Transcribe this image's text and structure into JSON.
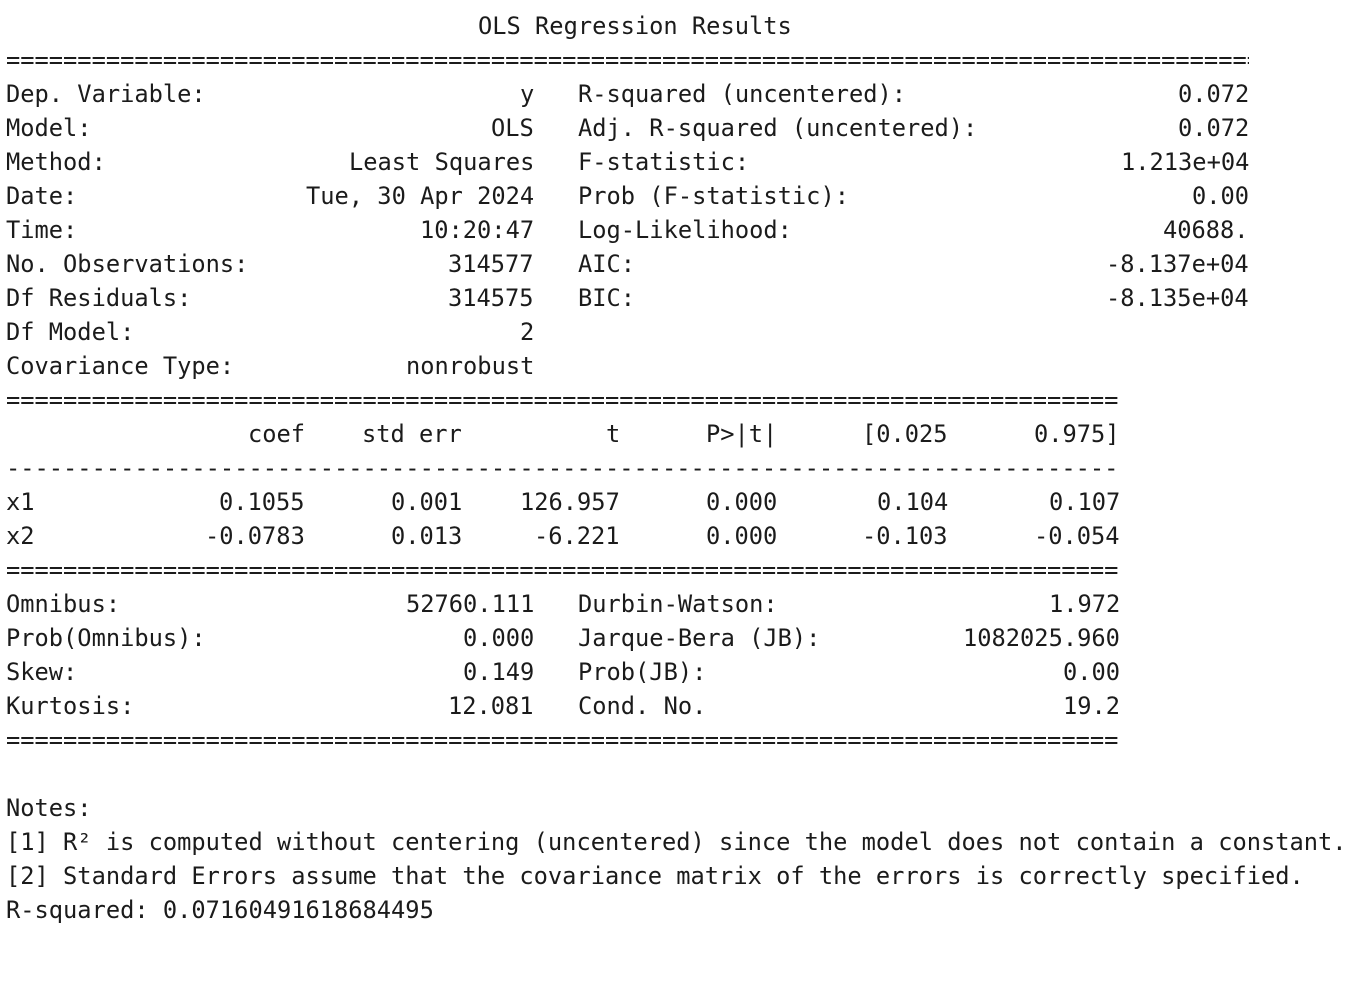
{
  "title": "OLS Regression Results",
  "rules": {
    "top": "==========================================================================================",
    "mid": "==============================================================================",
    "dash": "------------------------------------------------------------------------------"
  },
  "summary": {
    "rows": [
      {
        "l_label": "Dep. Variable:",
        "l_value": "y",
        "r_label": "R-squared (uncentered):",
        "r_value": "0.072"
      },
      {
        "l_label": "Model:",
        "l_value": "OLS",
        "r_label": "Adj. R-squared (uncentered):",
        "r_value": "0.072"
      },
      {
        "l_label": "Method:",
        "l_value": "Least Squares",
        "r_label": "F-statistic:",
        "r_value": "1.213e+04"
      },
      {
        "l_label": "Date:",
        "l_value": "Tue, 30 Apr 2024",
        "r_label": "Prob (F-statistic):",
        "r_value": "0.00"
      },
      {
        "l_label": "Time:",
        "l_value": "10:20:47",
        "r_label": "Log-Likelihood:",
        "r_value": "40688."
      },
      {
        "l_label": "No. Observations:",
        "l_value": "314577",
        "r_label": "AIC:",
        "r_value": "-8.137e+04"
      },
      {
        "l_label": "Df Residuals:",
        "l_value": "314575",
        "r_label": "BIC:",
        "r_value": "-8.135e+04"
      },
      {
        "l_label": "Df Model:",
        "l_value": "2",
        "r_label": "",
        "r_value": ""
      },
      {
        "l_label": "Covariance Type:",
        "l_value": "nonrobust",
        "r_label": "",
        "r_value": ""
      }
    ]
  },
  "coef_table": {
    "headers": [
      "",
      "coef",
      "std err",
      "t",
      "P>|t|",
      "[0.025",
      "0.975]"
    ],
    "rows": [
      [
        "x1",
        "0.1055",
        "0.001",
        "126.957",
        "0.000",
        "0.104",
        "0.107"
      ],
      [
        "x2",
        "-0.0783",
        "0.013",
        "-6.221",
        "0.000",
        "-0.103",
        "-0.054"
      ]
    ]
  },
  "diagnostics": {
    "rows": [
      {
        "l_label": "Omnibus:",
        "l_value": "52760.111",
        "r_label": "Durbin-Watson:",
        "r_value": "1.972"
      },
      {
        "l_label": "Prob(Omnibus):",
        "l_value": "0.000",
        "r_label": "Jarque-Bera (JB):",
        "r_value": "1082025.960"
      },
      {
        "l_label": "Skew:",
        "l_value": "0.149",
        "r_label": "Prob(JB):",
        "r_value": "0.00"
      },
      {
        "l_label": "Kurtosis:",
        "l_value": "12.081",
        "r_label": "Cond. No.",
        "r_value": "19.2"
      }
    ]
  },
  "notes": {
    "heading": "Notes:",
    "lines": [
      "[1] R² is computed without centering (uncentered) since the model does not contain a constant.",
      "[2] Standard Errors assume that the covariance matrix of the errors is correctly specified."
    ]
  },
  "r_squared_line": "R-squared: 0.07160491618684495"
}
